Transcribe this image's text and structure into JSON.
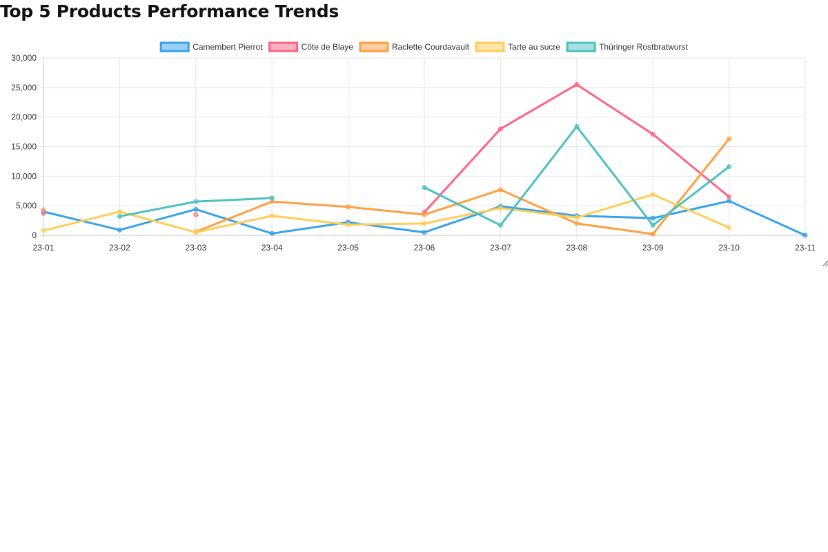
{
  "page": {
    "title": "Top 5 Products Performance Trends"
  },
  "chart_data": {
    "type": "line",
    "title": "",
    "xlabel": "",
    "ylabel": "",
    "categories": [
      "23-01",
      "23-02",
      "23-03",
      "23-04",
      "23-05",
      "23-06",
      "23-07",
      "23-08",
      "23-09",
      "23-10",
      "23-11"
    ],
    "ylim": [
      0,
      30000
    ],
    "y_ticks": [
      0,
      5000,
      10000,
      15000,
      20000,
      25000,
      30000
    ],
    "y_tick_labels": [
      "0",
      "5,000",
      "10,000",
      "15,000",
      "20,000",
      "25,000",
      "30,000"
    ],
    "grid": true,
    "legend_position": "top",
    "series": [
      {
        "name": "Camembert Pierrot",
        "color": "#36a2eb",
        "values": [
          4000,
          900,
          4400,
          300,
          2200,
          500,
          4900,
          3300,
          2900,
          5800,
          0
        ]
      },
      {
        "name": "Côte de Blaye",
        "color": "#ff6384",
        "values": [
          3700,
          null,
          3500,
          null,
          null,
          3900,
          18000,
          25500,
          17100,
          6500,
          null
        ]
      },
      {
        "name": "Raclette Courdavault",
        "color": "#ff9f40",
        "values": [
          4300,
          null,
          600,
          5700,
          4800,
          3500,
          7700,
          2000,
          200,
          16300,
          null
        ]
      },
      {
        "name": "Tarte au sucre",
        "color": "#ffcd56",
        "values": [
          800,
          4000,
          500,
          3300,
          1800,
          2000,
          4600,
          3000,
          6900,
          1300,
          null
        ]
      },
      {
        "name": "Thüringer Rostbratwurst",
        "color": "#4bc0c0",
        "values": [
          null,
          3200,
          5700,
          6300,
          null,
          8100,
          1700,
          18400,
          1700,
          11600,
          null
        ]
      }
    ]
  }
}
